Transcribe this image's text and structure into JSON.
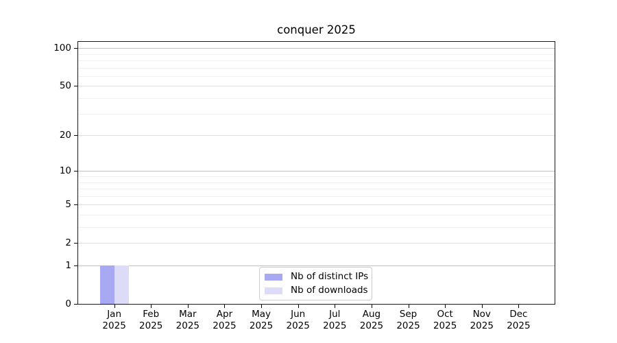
{
  "chart_data": {
    "type": "bar",
    "title": "conquer 2025",
    "categories": [
      "Jan",
      "Feb",
      "Mar",
      "Apr",
      "May",
      "Jun",
      "Jul",
      "Aug",
      "Sep",
      "Oct",
      "Nov",
      "Dec"
    ],
    "category_year": "2025",
    "series": [
      {
        "name": "Nb of distinct IPs",
        "color": "#a9a9f3",
        "values": [
          1,
          0,
          0,
          0,
          0,
          0,
          0,
          0,
          0,
          0,
          0,
          0
        ]
      },
      {
        "name": "Nb of downloads",
        "color": "#dcdcf8",
        "values": [
          1,
          0,
          0,
          0,
          0,
          0,
          0,
          0,
          0,
          0,
          0,
          0
        ]
      }
    ],
    "yscale": "log1p",
    "ylim": [
      0,
      100
    ],
    "yticks_major": [
      0,
      1,
      2,
      5,
      10,
      20,
      50,
      100
    ],
    "yticks_minor": [
      3,
      4,
      6,
      7,
      8,
      9,
      30,
      40,
      60,
      70,
      80,
      90
    ],
    "grid": "on",
    "grid_color_decade": "#bfbfbf",
    "grid_color_labeled": "#e0e0e0",
    "grid_color_minor": "#efefef",
    "legend_position": "lower center"
  }
}
